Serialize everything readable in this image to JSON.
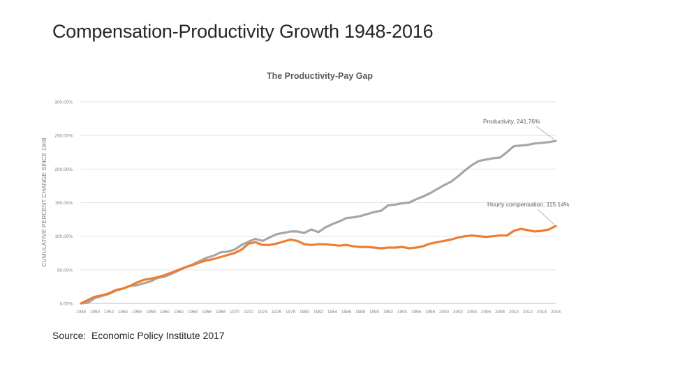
{
  "slide": {
    "title": "Compensation-Productivity Growth 1948-2016",
    "source": "Source:  Economic Policy Institute 2017"
  },
  "colors": {
    "productivity": "#a6a6a6",
    "compensation": "#ed7d31",
    "grid": "#e3e3e3",
    "axis_text": "#7f7f7f",
    "title_text": "#595959"
  },
  "chart_data": {
    "type": "line",
    "title": "The Productivity-Pay  Gap",
    "xlabel": "",
    "ylabel": "CUMULATIVE PERCENT CHANGE SINCE 1948",
    "ylim": [
      0,
      300
    ],
    "yticks": [
      0,
      50,
      100,
      150,
      200,
      250,
      300
    ],
    "ytick_labels": [
      "0.00%",
      "50.00%",
      "100.00%",
      "150.00%",
      "200.00%",
      "250.00%",
      "300.00%"
    ],
    "xlim": [
      1948,
      2016
    ],
    "xtick_labels": [
      "1948",
      "1950",
      "1952",
      "1954",
      "1956",
      "1958",
      "1960",
      "1962",
      "1964",
      "1966",
      "1968",
      "1970",
      "1972",
      "1974",
      "1976",
      "1978",
      "1980",
      "1982",
      "1984",
      "1986",
      "1988",
      "1990",
      "1992",
      "1994",
      "1996",
      "1998",
      "2000",
      "2002",
      "2004",
      "2006",
      "2008",
      "2010",
      "2012",
      "2014",
      "2016"
    ],
    "x": [
      1948,
      1949,
      1950,
      1951,
      1952,
      1953,
      1954,
      1955,
      1956,
      1957,
      1958,
      1959,
      1960,
      1961,
      1962,
      1963,
      1964,
      1965,
      1966,
      1967,
      1968,
      1969,
      1970,
      1971,
      1972,
      1973,
      1974,
      1975,
      1976,
      1977,
      1978,
      1979,
      1980,
      1981,
      1982,
      1983,
      1984,
      1985,
      1986,
      1987,
      1988,
      1989,
      1990,
      1991,
      1992,
      1993,
      1994,
      1995,
      1996,
      1997,
      1998,
      1999,
      2000,
      2001,
      2002,
      2003,
      2004,
      2005,
      2006,
      2007,
      2008,
      2009,
      2010,
      2011,
      2012,
      2013,
      2014,
      2015,
      2016
    ],
    "series": [
      {
        "name": "Productivity",
        "color_key": "productivity",
        "annotation": "Productivity,  241.76%",
        "values": [
          0,
          1,
          8,
          11,
          14,
          19,
          22,
          26,
          27,
          30,
          33,
          38,
          40,
          44,
          49,
          54,
          58,
          63,
          68,
          71,
          76,
          77,
          80,
          87,
          92,
          96,
          93,
          98,
          103,
          105,
          107,
          107,
          105,
          110,
          106,
          113,
          118,
          122,
          127,
          128,
          130,
          133,
          136,
          138,
          146,
          147,
          149,
          150,
          155,
          159,
          164,
          170,
          176,
          181,
          189,
          198,
          206,
          212,
          214,
          216,
          217,
          225,
          234,
          235,
          236,
          238,
          239,
          240,
          241.76
        ]
      },
      {
        "name": "Hourly compensation",
        "color_key": "compensation",
        "annotation": "Hourly compensation,  115.14%",
        "values": [
          0,
          5,
          10,
          12,
          15,
          20,
          22,
          26,
          31,
          35,
          37,
          39,
          42,
          46,
          50,
          54,
          57,
          61,
          64,
          66,
          69,
          72,
          75,
          80,
          89,
          91,
          87,
          87,
          89,
          92,
          95,
          93,
          88,
          87,
          88,
          88,
          87,
          86,
          87,
          85,
          84,
          84,
          83,
          82,
          83,
          83,
          84,
          82,
          83,
          85,
          89,
          91,
          93,
          95,
          98,
          100,
          101,
          100,
          99,
          100,
          101,
          101,
          108,
          111,
          109,
          107,
          108,
          110,
          115.14
        ]
      }
    ]
  }
}
